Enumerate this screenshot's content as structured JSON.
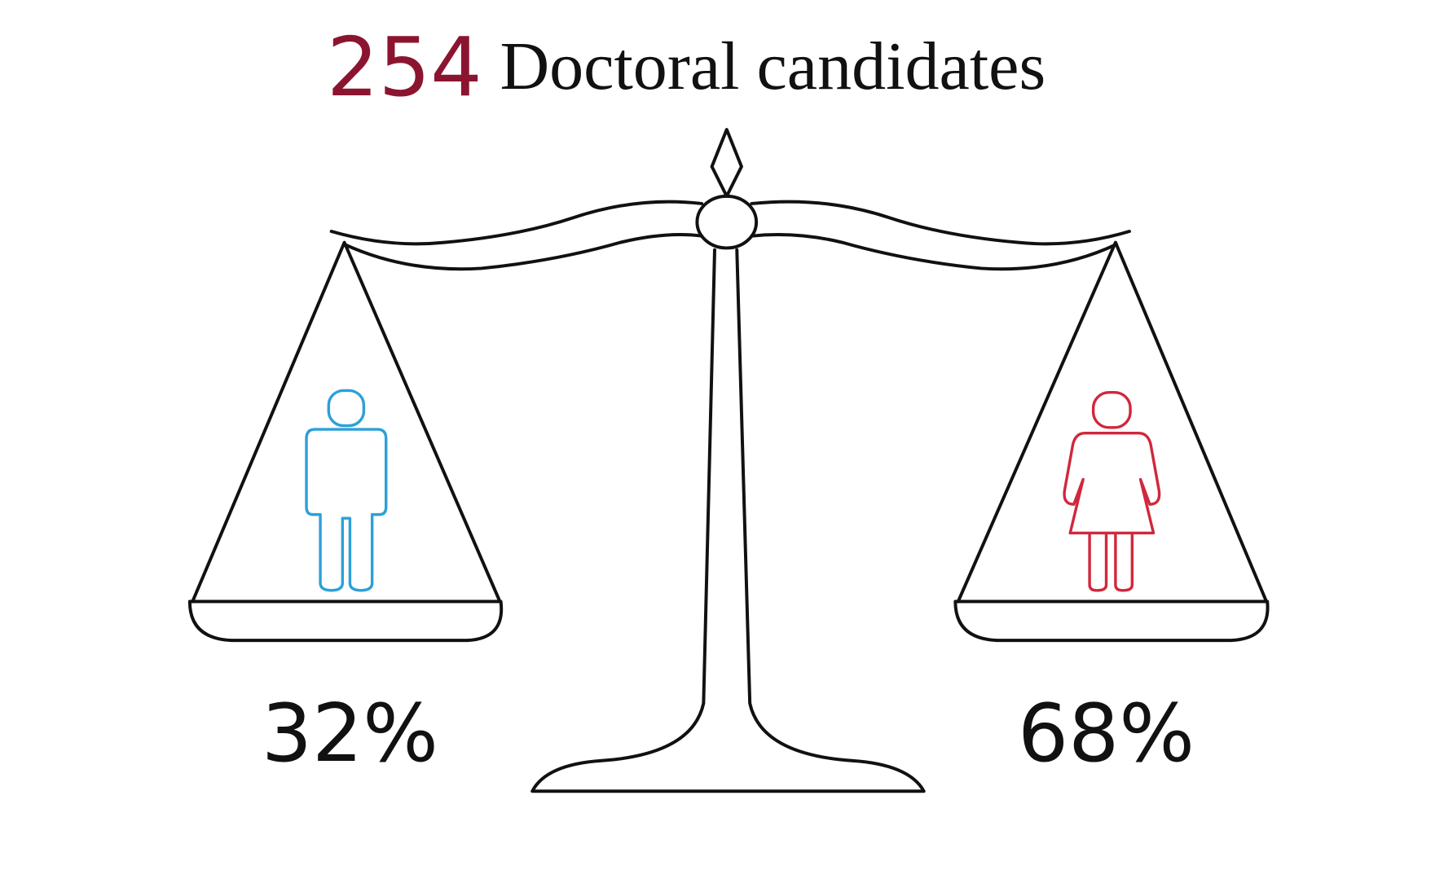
{
  "header": {
    "count": "254",
    "title": "Doctoral candidates"
  },
  "scale": {
    "left_label": "32%",
    "right_label": "68%"
  }
}
